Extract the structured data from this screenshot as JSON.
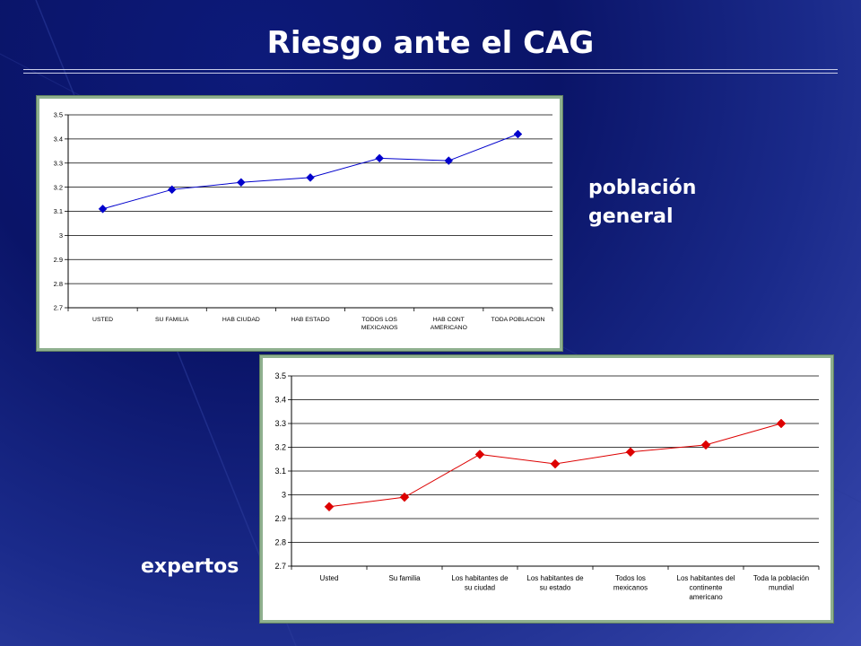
{
  "slide": {
    "title": "Riesgo ante el CAG",
    "label_top": "población general",
    "label_bottom": "expertos"
  },
  "chart_data": [
    {
      "type": "line",
      "title": "",
      "xlabel": "",
      "ylabel": "",
      "categories": [
        "USTED",
        "SU FAMILIA",
        "HAB CIUDAD",
        "HAB ESTADO",
        "TODOS LOS MEXICANOS",
        "HAB CONT AMERICANO",
        "TODA POBLACION"
      ],
      "category_lines": [
        [
          "USTED"
        ],
        [
          "SU FAMILIA"
        ],
        [
          "HAB CIUDAD"
        ],
        [
          "HAB ESTADO"
        ],
        [
          "TODOS LOS",
          "MEXICANOS"
        ],
        [
          "HAB CONT",
          "AMERICANO"
        ],
        [
          "TODA POBLACION"
        ]
      ],
      "series": [
        {
          "values": [
            3.11,
            3.19,
            3.22,
            3.24,
            3.32,
            3.31,
            3.42
          ],
          "color": "#0000cc"
        }
      ],
      "ylim": [
        2.7,
        3.5
      ],
      "yticks": [
        "2.7",
        "2.8",
        "2.9",
        "3",
        "3.1",
        "3.2",
        "3.3",
        "3.4",
        "3.5"
      ],
      "grid": true,
      "marker": "diamond"
    },
    {
      "type": "line",
      "title": "",
      "xlabel": "",
      "ylabel": "",
      "categories": [
        "Usted",
        "Su familia",
        "Los habitantes de su ciudad",
        "Los habitantes de su estado",
        "Todos los mexicanos",
        "Los habitantes del continente americano",
        "Toda la población mundial"
      ],
      "category_lines": [
        [
          "Usted"
        ],
        [
          "Su familia"
        ],
        [
          "Los habitantes de",
          "su ciudad"
        ],
        [
          "Los habitantes de",
          "su estado"
        ],
        [
          "Todos los",
          "mexicanos"
        ],
        [
          "Los habitantes del",
          "continente",
          "americano"
        ],
        [
          "Toda la población",
          "mundial"
        ]
      ],
      "series": [
        {
          "values": [
            2.95,
            2.99,
            3.17,
            3.13,
            3.18,
            3.21,
            3.3
          ],
          "color": "#dd0000"
        }
      ],
      "ylim": [
        2.7,
        3.5
      ],
      "yticks": [
        "2.7",
        "2.8",
        "2.9",
        "3",
        "3.1",
        "3.2",
        "3.3",
        "3.4",
        "3.5"
      ],
      "grid": true,
      "marker": "diamond"
    }
  ]
}
